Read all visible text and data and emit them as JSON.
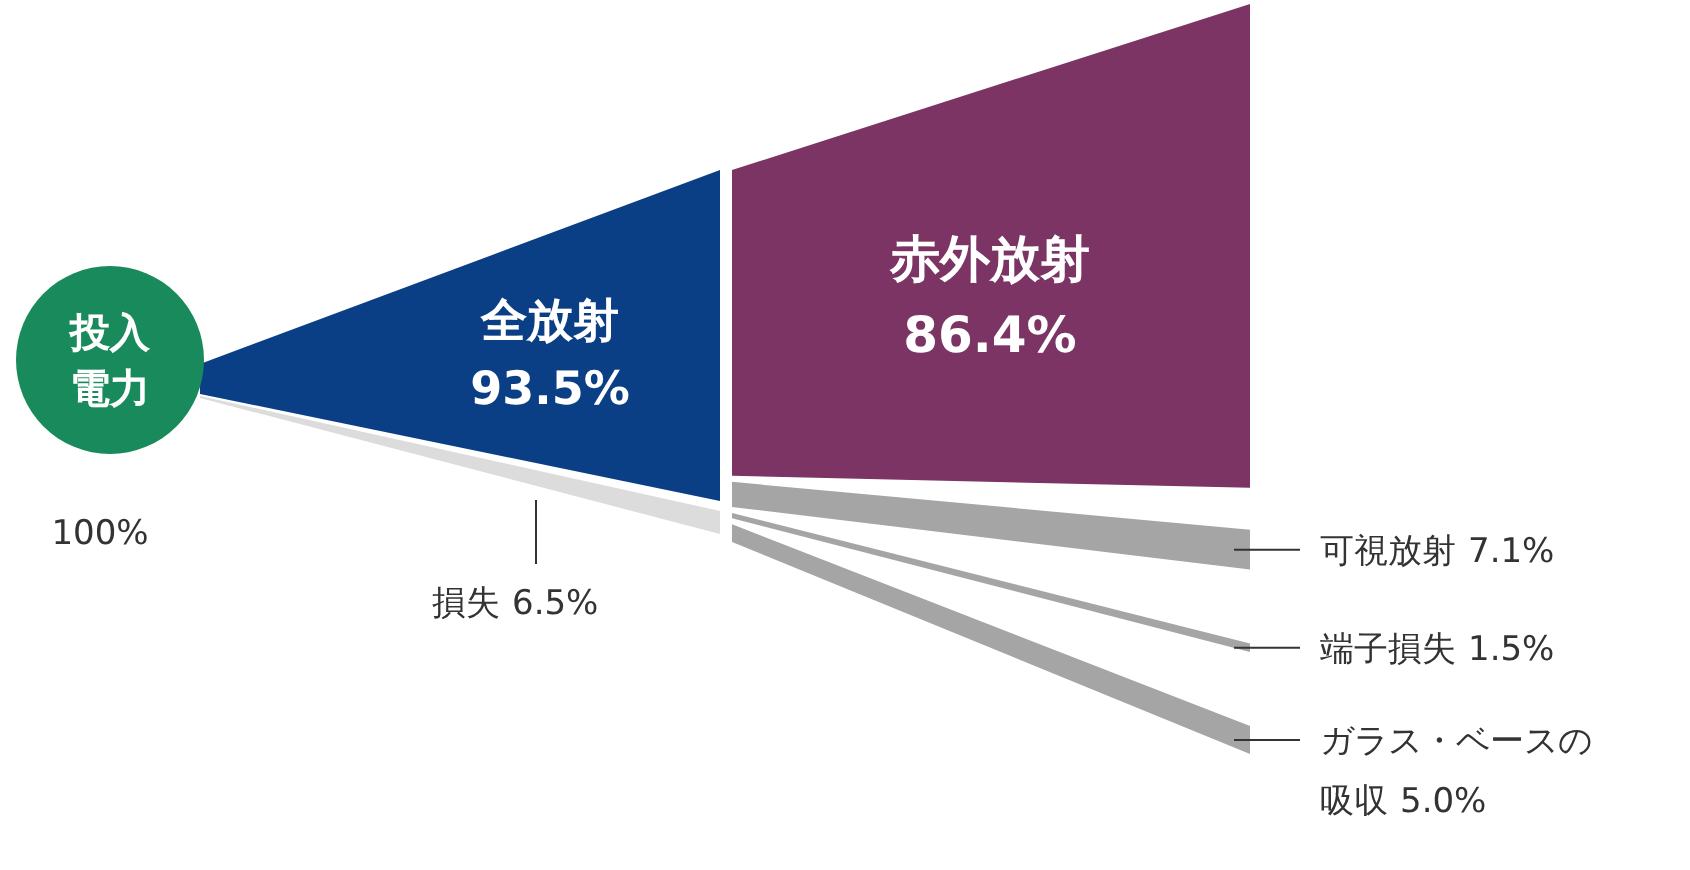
{
  "chart_data": {
    "type": "other",
    "categories": [
      "投入電力",
      "全放射",
      "損失",
      "赤外放射",
      "可視放射",
      "端子損失",
      "ガラス・ベースの吸収"
    ],
    "values": [
      100,
      93.5,
      6.5,
      86.4,
      7.1,
      1.5,
      5.0
    ],
    "value_labels": [
      "100%",
      "93.5%",
      "6.5%",
      "86.4%",
      "7.1%",
      "1.5%",
      "5.0%"
    ],
    "colors": [
      "#188a5c",
      "#0b3f85",
      "#dcdcdc",
      "#7b3463",
      "#a5a5a5",
      "#a5a5a5",
      "#a5a5a5"
    ]
  }
}
